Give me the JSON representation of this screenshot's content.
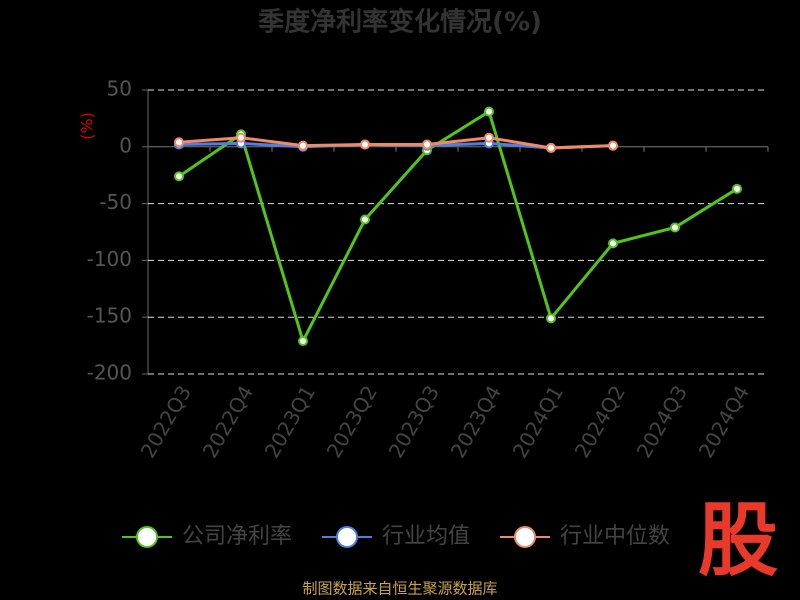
{
  "chart_data": {
    "type": "line",
    "title": "季度净利率变化情况(%)",
    "y_label": "(%)",
    "categories": [
      "2022Q3",
      "2022Q4",
      "2023Q1",
      "2023Q2",
      "2023Q3",
      "2023Q4",
      "2024Q1",
      "2024Q2",
      "2024Q3",
      "2024Q4"
    ],
    "series": [
      {
        "name": "公司净利率",
        "color": "#52c41a",
        "values": [
          -26,
          11,
          -171,
          -64,
          -3,
          31,
          -151,
          -85,
          -71,
          -37
        ]
      },
      {
        "name": "行业均值",
        "color": "#4f7fe0",
        "values": [
          2,
          3,
          0,
          2,
          1,
          3,
          -1,
          1,
          null,
          null
        ]
      },
      {
        "name": "行业中位数",
        "color": "#f08a65",
        "values": [
          4,
          8,
          1,
          2,
          2,
          8,
          -1,
          1,
          null,
          null
        ]
      }
    ],
    "ylim": [
      -200,
      50
    ],
    "yticks": [
      -200,
      -150,
      -100,
      -50,
      0,
      50
    ],
    "grid": true,
    "legend": "bottom",
    "source": "制图数据来自恒生聚源数据库",
    "logo": "股"
  }
}
